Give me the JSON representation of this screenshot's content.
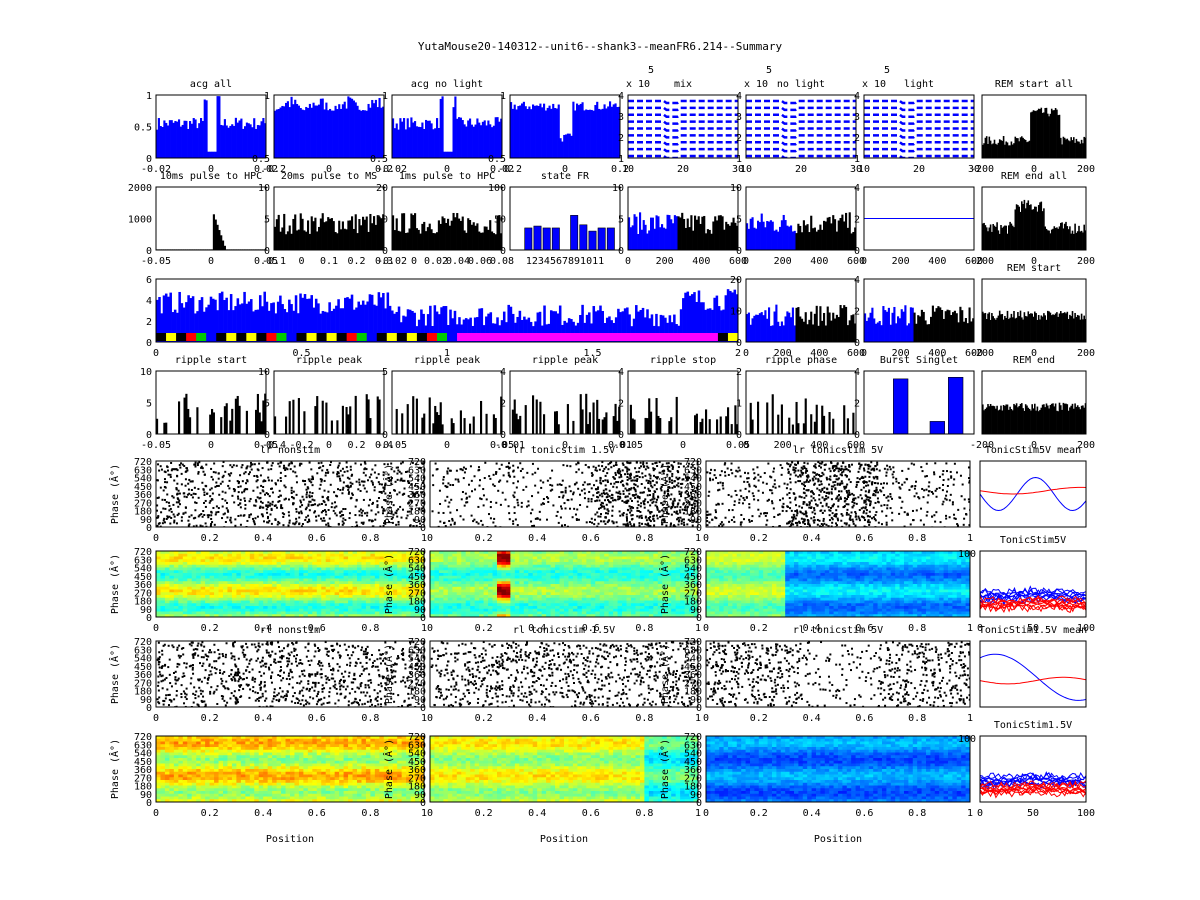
{
  "figure_title": "YutaMouse20-140312--unit6--shank3--meanFR6.214--Summary",
  "colors": {
    "blue": "#0000ff",
    "black": "#000000",
    "red": "#ff0000",
    "yellow": "#ffff00",
    "magenta": "#ff00ff",
    "green": "#00cc00"
  },
  "chart_data": [
    {
      "id": "acg-all",
      "type": "bar",
      "title": "acg all",
      "xticks": [
        "-0.02",
        "0",
        "0.02"
      ],
      "yticks": [
        "0",
        "0.5",
        "1"
      ],
      "ylim": [
        0,
        1
      ],
      "series_color": "blue",
      "profile": "acg-notch"
    },
    {
      "id": "acg-2",
      "type": "bar",
      "title": "",
      "xticks": [
        "-0.2",
        "0",
        "0.2"
      ],
      "yticks": [
        "0.5",
        "1"
      ],
      "ylim": [
        0,
        1
      ],
      "series_color": "blue",
      "profile": "acg-wide"
    },
    {
      "id": "acg-no-light",
      "type": "bar",
      "title": "acg no light",
      "xticks": [
        "-0.02",
        "0",
        "0.02"
      ],
      "yticks": [
        "0.5",
        "1"
      ],
      "ylim": [
        0,
        1
      ],
      "series_color": "blue",
      "profile": "acg-notch"
    },
    {
      "id": "acg-4",
      "type": "bar",
      "title": "",
      "xticks": [
        "-0.2",
        "0",
        "0.2"
      ],
      "yticks": [
        "0.5",
        "1"
      ],
      "ylim": [
        0,
        1
      ],
      "series_color": "blue",
      "profile": "acg-dip"
    },
    {
      "id": "wave-mix",
      "type": "line",
      "title": "mix",
      "exponent": "x 10",
      "exponent_power": "5",
      "xticks": [
        "10",
        "20",
        "30"
      ],
      "yticks": [
        "1",
        "2",
        "3",
        "4"
      ],
      "ylim": [
        0,
        4
      ],
      "series_color": "blue",
      "profile": "waves"
    },
    {
      "id": "wave-no-light",
      "type": "line",
      "title": "no light",
      "exponent": "x 10",
      "exponent_power": "5",
      "xticks": [
        "10",
        "20",
        "30"
      ],
      "yticks": [
        "1",
        "2",
        "3",
        "4"
      ],
      "ylim": [
        0,
        4
      ],
      "series_color": "blue",
      "profile": "waves"
    },
    {
      "id": "wave-light",
      "type": "line",
      "title": "light",
      "exponent": "x 10",
      "exponent_power": "5",
      "xticks": [
        "10",
        "20",
        "30"
      ],
      "yticks": [
        "1",
        "2",
        "3",
        "4"
      ],
      "ylim": [
        0,
        4
      ],
      "series_color": "blue",
      "profile": "waves"
    },
    {
      "id": "rem-start-all",
      "type": "area",
      "title": "REM start all",
      "xticks": [
        "-200",
        "0",
        "200"
      ],
      "yticks": [],
      "series_color": "black",
      "profile": "rem-peak"
    },
    {
      "id": "pulse-hpc",
      "type": "bar",
      "title": "10ms pulse to HPC",
      "xticks": [
        "-0.05",
        "0",
        "0.05"
      ],
      "yticks": [
        "0",
        "1000",
        "2000"
      ],
      "ylim": [
        0,
        2000
      ],
      "series_color": "black",
      "profile": "pulse"
    },
    {
      "id": "pulse-ms",
      "type": "bar",
      "title": "20ms pulse to MS",
      "xticks": [
        "-0.1",
        "0",
        "0.1",
        "0.2",
        "0.3"
      ],
      "yticks": [
        "0",
        "5",
        "10"
      ],
      "ylim": [
        0,
        10
      ],
      "series_color": "black",
      "profile": "noise"
    },
    {
      "id": "pulse-hpc-1ms",
      "type": "bar",
      "title": "1ms pulse to HPC",
      "xticks": [
        "-0.02",
        "0",
        "0.02",
        "0.04",
        "0.06",
        "0.08"
      ],
      "yticks": [
        "0",
        "10",
        "20"
      ],
      "ylim": [
        0,
        20
      ],
      "series_color": "black",
      "profile": "noise"
    },
    {
      "id": "state-fr",
      "type": "bar",
      "title": "state FR",
      "categories": [
        "1",
        "2",
        "3",
        "4",
        "5",
        "6",
        "7",
        "8",
        "9",
        "10",
        "11"
      ],
      "xticks_label": "1234567891011",
      "values": [
        0,
        35,
        38,
        35,
        35,
        0,
        55,
        40,
        30,
        35,
        35
      ],
      "yticks": [
        "0",
        "50",
        "100"
      ],
      "ylim": [
        0,
        100
      ],
      "series_color": "blue"
    },
    {
      "id": "fr-time-1",
      "type": "area",
      "title": "",
      "xticks": [
        "0",
        "200",
        "400",
        "600"
      ],
      "yticks": [
        "0",
        "5",
        "10"
      ],
      "ylim": [
        0,
        10
      ],
      "split": "blue-black",
      "profile": "fr"
    },
    {
      "id": "fr-time-2",
      "type": "bar",
      "title": "",
      "xticks": [
        "0",
        "200",
        "400",
        "600"
      ],
      "yticks": [
        "0",
        "5",
        "10"
      ],
      "ylim": [
        0,
        10
      ],
      "split": "blue-black",
      "profile": "fr-bars"
    },
    {
      "id": "fr-time-3",
      "type": "line",
      "title": "",
      "xticks": [
        "0",
        "200",
        "400",
        "600"
      ],
      "yticks": [
        "0",
        "2",
        "4"
      ],
      "ylim": [
        -4,
        4
      ],
      "series_color": "blue",
      "profile": "flat"
    },
    {
      "id": "rem-end-all",
      "type": "area",
      "title": "REM end all",
      "xticks": [
        "-200",
        "0",
        "200"
      ],
      "yticks": [],
      "series_color": "black",
      "profile": "rem-hump"
    },
    {
      "id": "long-fr",
      "type": "area",
      "title": "",
      "xticks": [
        "0",
        "0.5",
        "1",
        "1.5",
        "2"
      ],
      "yticks": [
        "0",
        "2",
        "4",
        "6"
      ],
      "ylim": [
        0,
        7
      ],
      "series_color": "blue",
      "profile": "long"
    },
    {
      "id": "fr-time-4",
      "type": "bar",
      "title": "",
      "xticks": [
        "0",
        "200",
        "400",
        "600"
      ],
      "yticks": [
        "0",
        "10",
        "20"
      ],
      "ylim": [
        0,
        20
      ],
      "split": "blue-black",
      "profile": "fr-bars"
    },
    {
      "id": "fr-time-5",
      "type": "bar",
      "title": "",
      "xticks": [
        "0",
        "200",
        "400",
        "600"
      ],
      "yticks": [
        "0",
        "2",
        "4"
      ],
      "ylim": [
        0,
        4
      ],
      "split": "blue-black",
      "profile": "fr-bars"
    },
    {
      "id": "rem-start",
      "type": "area",
      "title": "REM start",
      "xticks": [
        "-200",
        "0",
        "200"
      ],
      "yticks": [],
      "series_color": "black",
      "profile": "rem-flat"
    },
    {
      "id": "ripple-start",
      "type": "bar",
      "title": "ripple start",
      "xticks": [
        "-0.05",
        "0",
        "0.05"
      ],
      "yticks": [
        "0",
        "5",
        "10"
      ],
      "ylim": [
        0,
        10
      ],
      "series_color": "black",
      "profile": "sparse"
    },
    {
      "id": "ripple-peak-1",
      "type": "bar",
      "title": "ripple peak",
      "xticks": [
        "-0.4",
        "-0.2",
        "0",
        "0.2",
        "0.4"
      ],
      "yticks": [
        "0",
        "5",
        "10"
      ],
      "ylim": [
        0,
        10
      ],
      "series_color": "black",
      "profile": "sparse"
    },
    {
      "id": "ripple-peak-2",
      "type": "bar",
      "title": "ripple peak",
      "xticks": [
        "-0.05",
        "0",
        "0.05"
      ],
      "yticks": [
        "0",
        "5"
      ],
      "ylim": [
        0,
        5
      ],
      "series_color": "black",
      "profile": "sparse"
    },
    {
      "id": "ripple-peak-3",
      "type": "bar",
      "title": "ripple peak",
      "xticks": [
        "-0.01",
        "0",
        "0.01"
      ],
      "yticks": [
        "0",
        "2",
        "4"
      ],
      "ylim": [
        0,
        4
      ],
      "series_color": "black",
      "profile": "sparse"
    },
    {
      "id": "ripple-stop",
      "type": "bar",
      "title": "ripple stop",
      "xticks": [
        "-0.05",
        "0",
        "0.05"
      ],
      "yticks": [
        "0",
        "2",
        "4"
      ],
      "ylim": [
        0,
        4
      ],
      "series_color": "black",
      "profile": "sparse"
    },
    {
      "id": "ripple-phase",
      "type": "bar",
      "title": "ripple phase",
      "xticks": [
        "0",
        "200",
        "400",
        "600"
      ],
      "yticks": [
        "0",
        "1",
        "2"
      ],
      "ylim": [
        0,
        2
      ],
      "series_color": "black",
      "profile": "sparse"
    },
    {
      "id": "burst-singlet",
      "type": "bar",
      "title": "Burst Singlet",
      "categories": [
        "1",
        "2",
        "3",
        "4",
        "5"
      ],
      "values": [
        0,
        3.5,
        0,
        0.8,
        3.6
      ],
      "yticks": [
        "0",
        "2",
        "4"
      ],
      "ylim": [
        0,
        4
      ],
      "series_color": "blue"
    },
    {
      "id": "rem-end",
      "type": "area",
      "title": "REM end",
      "xticks": [
        "-200",
        "0",
        "200"
      ],
      "yticks": [],
      "series_color": "black",
      "profile": "rem-flat"
    },
    {
      "id": "lr-nonstim",
      "type": "scatter",
      "title": "lr nonstim",
      "xticks": [
        "0",
        "0.2",
        "0.4",
        "0.6",
        "0.8",
        "1"
      ],
      "ylabel": "Phase (Â°)",
      "yticks": [
        "0",
        "90",
        "180",
        "270",
        "360",
        "450",
        "540",
        "630",
        "720"
      ],
      "ylim": [
        0,
        720
      ],
      "density": "uniform"
    },
    {
      "id": "lr-tonic-15",
      "type": "scatter",
      "title": "lr tonicstim 1.5V",
      "xticks": [
        "0",
        "0.2",
        "0.4",
        "0.6",
        "0.8",
        "1"
      ],
      "ylabel": "Phase (Â°)",
      "yticks": [
        "0",
        "90",
        "180",
        "270",
        "360",
        "450",
        "540",
        "630",
        "720"
      ],
      "ylim": [
        0,
        720
      ],
      "density": "right"
    },
    {
      "id": "lr-tonic-5",
      "type": "scatter",
      "title": "lr tonicstim 5V",
      "xticks": [
        "0",
        "0.2",
        "0.4",
        "0.6",
        "0.8",
        "1"
      ],
      "ylabel": "Phase (Â°)",
      "yticks": [
        "0",
        "90",
        "180",
        "270",
        "360",
        "450",
        "540",
        "630",
        "720"
      ],
      "ylim": [
        0,
        720
      ],
      "density": "middle"
    },
    {
      "id": "tonic5v-mean",
      "type": "line",
      "title": "TonicStim5V mean",
      "xticks": [],
      "series": [
        {
          "name": "blue",
          "color": "blue"
        },
        {
          "name": "red",
          "color": "red"
        }
      ],
      "profile": "mean"
    },
    {
      "id": "heat-lr-nonstim",
      "type": "heatmap",
      "title": "",
      "xticks": [
        "0",
        "0.2",
        "0.4",
        "0.6",
        "0.8",
        "1"
      ],
      "ylabel": "Phase (Â°)",
      "yticks": [
        "0",
        "90",
        "180",
        "270",
        "360",
        "450",
        "540",
        "630",
        "720"
      ],
      "ylim": [
        0,
        720
      ],
      "pattern": "bands"
    },
    {
      "id": "heat-lr-15",
      "type": "heatmap",
      "title": "",
      "xticks": [
        "0",
        "0.2",
        "0.4",
        "0.6",
        "0.8",
        "1"
      ],
      "ylabel": "Phase (Â°)",
      "yticks": [
        "0",
        "90",
        "180",
        "270",
        "360",
        "450",
        "540",
        "630",
        "720"
      ],
      "ylim": [
        0,
        720
      ],
      "pattern": "hotspot"
    },
    {
      "id": "heat-lr-5",
      "type": "heatmap",
      "title": "",
      "xticks": [
        "0",
        "0.2",
        "0.4",
        "0.6",
        "0.8",
        "1"
      ],
      "ylabel": "Phase (Â°)",
      "yticks": [
        "0",
        "90",
        "180",
        "270",
        "360",
        "450",
        "540",
        "630",
        "720"
      ],
      "ylim": [
        0,
        720
      ],
      "pattern": "coolright"
    },
    {
      "id": "tonic5v",
      "type": "line",
      "title": "TonicStim5V",
      "xticks": [
        "0",
        "50",
        "100"
      ],
      "yticks": [
        "100"
      ],
      "series": [
        {
          "name": "blue",
          "color": "blue"
        },
        {
          "name": "red",
          "color": "red"
        }
      ],
      "profile": "traces"
    },
    {
      "id": "rl-nonstim",
      "type": "scatter",
      "title": "rl nonstim",
      "xticks": [
        "0",
        "0.2",
        "0.4",
        "0.6",
        "0.8",
        "1"
      ],
      "ylabel": "Phase (Â°)",
      "yticks": [
        "0",
        "90",
        "180",
        "270",
        "360",
        "450",
        "540",
        "630",
        "720"
      ],
      "ylim": [
        0,
        720
      ],
      "density": "uniform"
    },
    {
      "id": "rl-tonic-15",
      "type": "scatter",
      "title": "rl tonicstim 1.5V",
      "xticks": [
        "0",
        "0.2",
        "0.4",
        "0.6",
        "0.8",
        "1"
      ],
      "ylabel": "Phase (Â°)",
      "yticks": [
        "0",
        "90",
        "180",
        "270",
        "360",
        "450",
        "540",
        "630",
        "720"
      ],
      "ylim": [
        0,
        720
      ],
      "density": "mixed"
    },
    {
      "id": "rl-tonic-5",
      "type": "scatter",
      "title": "rl tonicstim 5V",
      "xticks": [
        "0",
        "0.2",
        "0.4",
        "0.6",
        "0.8",
        "1"
      ],
      "ylabel": "Phase (Â°)",
      "yticks": [
        "0",
        "90",
        "180",
        "270",
        "360",
        "450",
        "540",
        "630",
        "720"
      ],
      "ylim": [
        0,
        720
      ],
      "density": "sparse-mid"
    },
    {
      "id": "tonic15v-mean",
      "type": "line",
      "title": "TonicStim1.5V mean",
      "xticks": [],
      "series": [
        {
          "name": "blue",
          "color": "blue"
        },
        {
          "name": "red",
          "color": "red"
        }
      ],
      "profile": "mean2"
    },
    {
      "id": "heat-rl-nonstim",
      "type": "heatmap",
      "title": "",
      "xticks": [
        "0",
        "0.2",
        "0.4",
        "0.6",
        "0.8",
        "1"
      ],
      "xlabel": "Position",
      "ylabel": "Phase (Â°)",
      "yticks": [
        "0",
        "90",
        "180",
        "270",
        "360",
        "450",
        "540",
        "630",
        "720"
      ],
      "ylim": [
        0,
        720
      ],
      "pattern": "warm"
    },
    {
      "id": "heat-rl-15",
      "type": "heatmap",
      "title": "",
      "xticks": [
        "0",
        "0.2",
        "0.4",
        "0.6",
        "0.8",
        "1"
      ],
      "xlabel": "Position",
      "ylabel": "Phase (Â°)",
      "yticks": [
        "0",
        "90",
        "180",
        "270",
        "360",
        "450",
        "540",
        "630",
        "720"
      ],
      "ylim": [
        0,
        720
      ],
      "pattern": "warmleft"
    },
    {
      "id": "heat-rl-5",
      "type": "heatmap",
      "title": "",
      "xticks": [
        "0",
        "0.2",
        "0.4",
        "0.6",
        "0.8",
        "1"
      ],
      "xlabel": "Position",
      "ylabel": "Phase (Â°)",
      "yticks": [
        "0",
        "90",
        "180",
        "270",
        "360",
        "450",
        "540",
        "630",
        "720"
      ],
      "ylim": [
        0,
        720
      ],
      "pattern": "cool"
    },
    {
      "id": "tonic15v",
      "type": "line",
      "title": "TonicStim1.5V",
      "xticks": [
        "0",
        "50",
        "100"
      ],
      "yticks": [
        "100"
      ],
      "series": [
        {
          "name": "blue",
          "color": "blue"
        },
        {
          "name": "red",
          "color": "red"
        }
      ],
      "profile": "traces"
    }
  ]
}
